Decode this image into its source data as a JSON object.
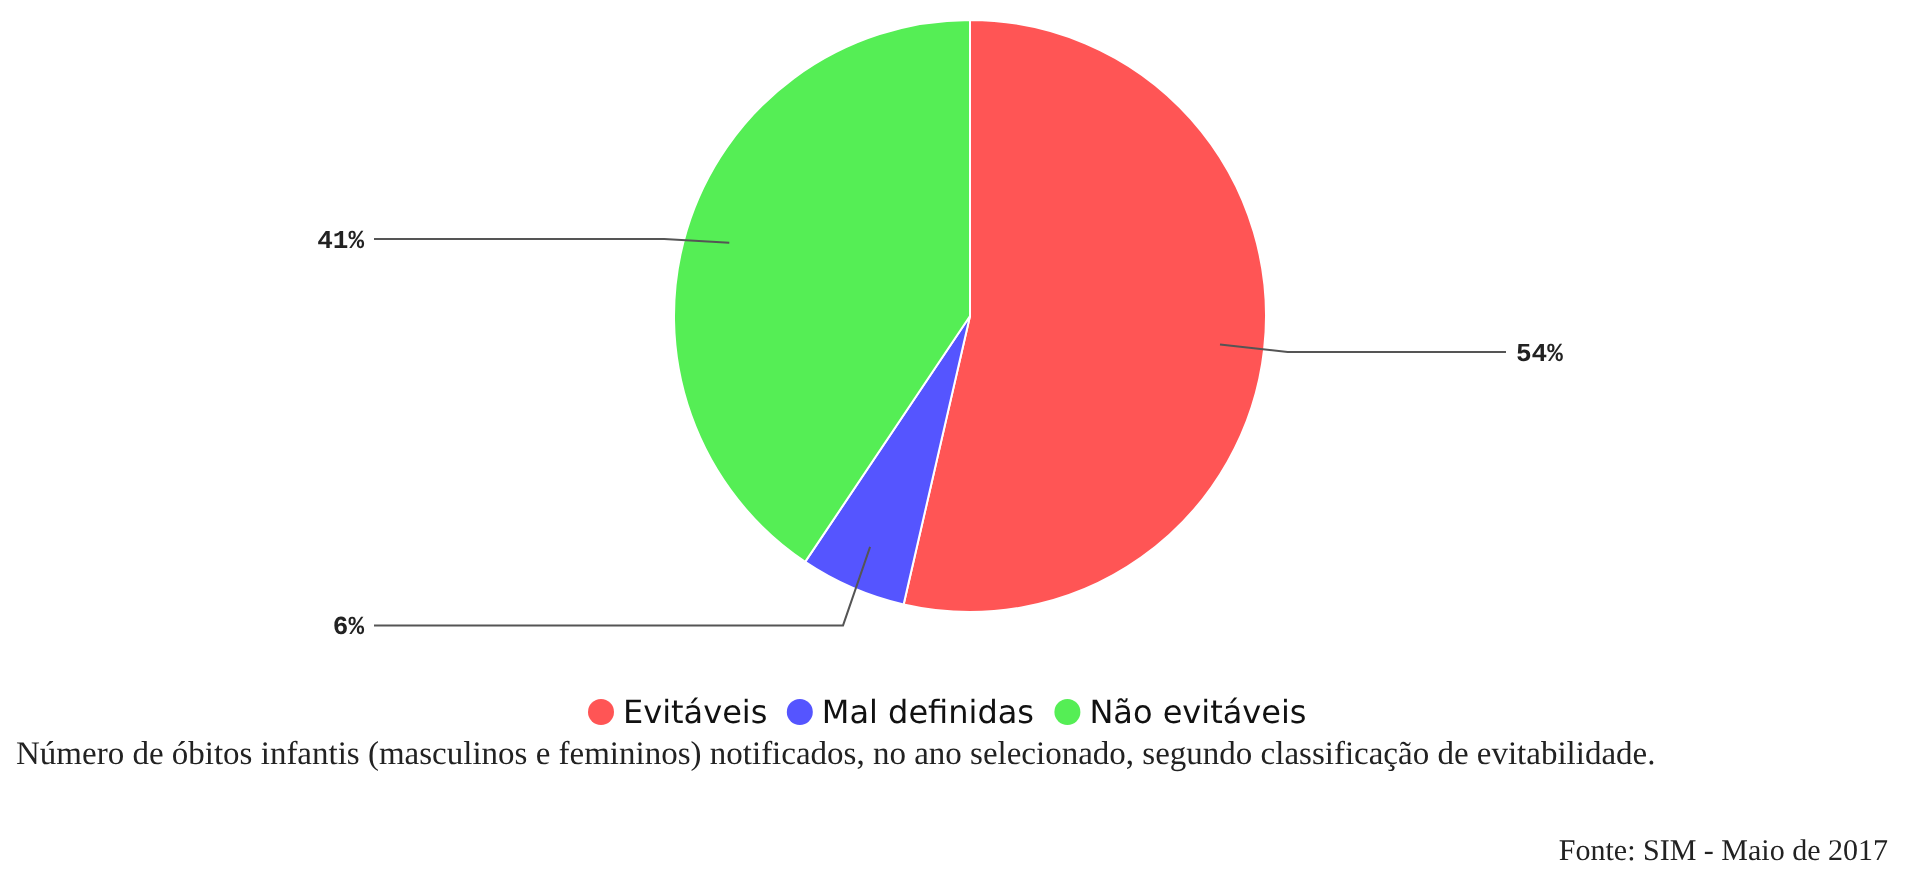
{
  "chart_data": {
    "type": "pie",
    "categories": [
      "Evitáveis",
      "Mal definidas",
      "Não evitáveis"
    ],
    "values": [
      53.6,
      5.8,
      40.6
    ],
    "value_labels": [
      "54%",
      "6%",
      "41%"
    ],
    "colors": [
      "#ff5555",
      "#5555ff",
      "#55ee55"
    ],
    "legend": "bottom",
    "annotations": [
      "Número de óbitos infantis (masculinos e femininos) notificados, no ano selecionado, segundo classificação de evitabilidade.",
      "Fonte: SIM - Maio de 2017"
    ]
  }
}
